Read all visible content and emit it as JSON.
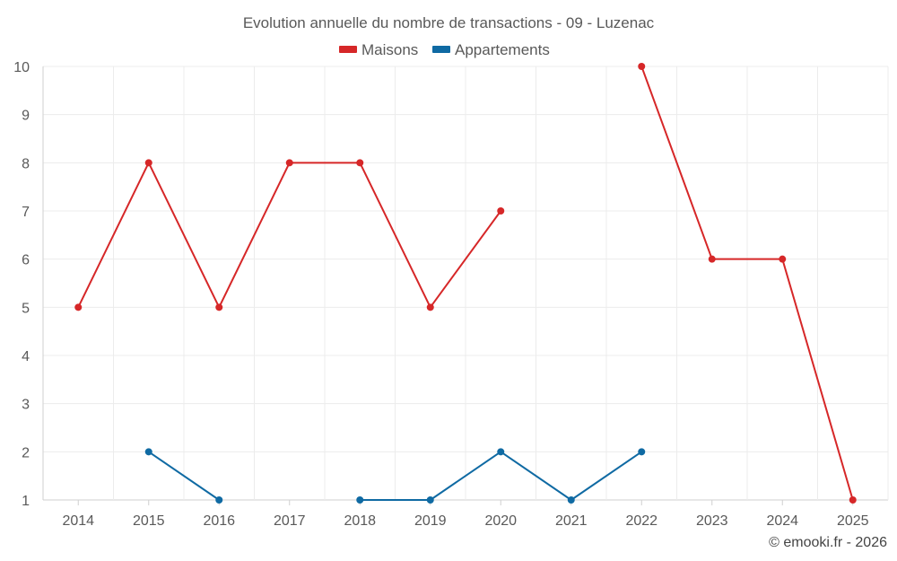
{
  "chart_data": {
    "type": "line",
    "title": "Evolution annuelle du nombre de transactions - 09 - Luzenac",
    "xlabel": "",
    "ylabel": "",
    "categories": [
      "2014",
      "2015",
      "2016",
      "2017",
      "2018",
      "2019",
      "2020",
      "2021",
      "2022",
      "2023",
      "2024",
      "2025"
    ],
    "ylim": [
      1,
      10
    ],
    "yticks": [
      "1",
      "2",
      "3",
      "4",
      "5",
      "6",
      "7",
      "8",
      "9",
      "10"
    ],
    "grid": true,
    "legend_position": "top-center",
    "series": [
      {
        "name": "Maisons",
        "color": "#d62728",
        "values": [
          5,
          8,
          5,
          8,
          8,
          5,
          7,
          null,
          10,
          6,
          6,
          1
        ]
      },
      {
        "name": "Appartements",
        "color": "#0f6aa3",
        "values": [
          null,
          2,
          1,
          null,
          1,
          1,
          2,
          1,
          2,
          null,
          null,
          null
        ]
      }
    ],
    "credit": "© emooki.fr - 2026"
  }
}
